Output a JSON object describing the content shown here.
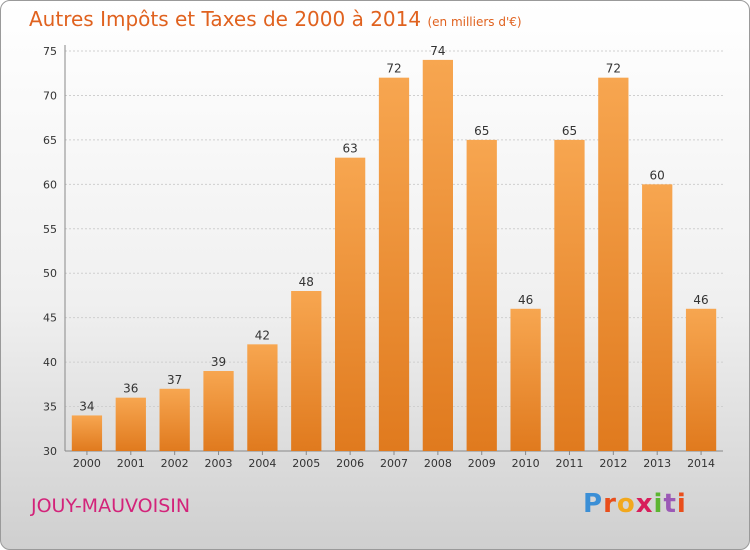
{
  "header": {
    "title": "Autres Impôts et Taxes de 2000 à 2014",
    "subtitle": "(en milliers d'€)"
  },
  "footer": {
    "commune": "JOUY-MAUVOISIN",
    "logo_text": "Proxiti",
    "logo_colors": [
      "#3b8fd6",
      "#e94e1b",
      "#f2a81d",
      "#d81e5b",
      "#5cb531",
      "#9b59b6",
      "#e94e1b"
    ]
  },
  "colors": {
    "bar_light": "#f7a650",
    "bar_dark": "#e07a1e",
    "grid": "#cfcfcf",
    "title": "#e0621f",
    "commune": "#d3237a"
  },
  "chart_data": {
    "type": "bar",
    "title": "Autres Impôts et Taxes de 2000 à 2014",
    "subtitle": "(en milliers d'€)",
    "categories": [
      "2000",
      "2001",
      "2002",
      "2003",
      "2004",
      "2005",
      "2006",
      "2007",
      "2008",
      "2009",
      "2010",
      "2011",
      "2012",
      "2013",
      "2014"
    ],
    "values": [
      34,
      36,
      37,
      39,
      42,
      48,
      63,
      72,
      74,
      65,
      46,
      65,
      72,
      60,
      46
    ],
    "yticks": [
      30,
      35,
      40,
      45,
      50,
      55,
      60,
      65,
      70,
      75
    ],
    "ylim": [
      30,
      75
    ],
    "grid": true
  }
}
